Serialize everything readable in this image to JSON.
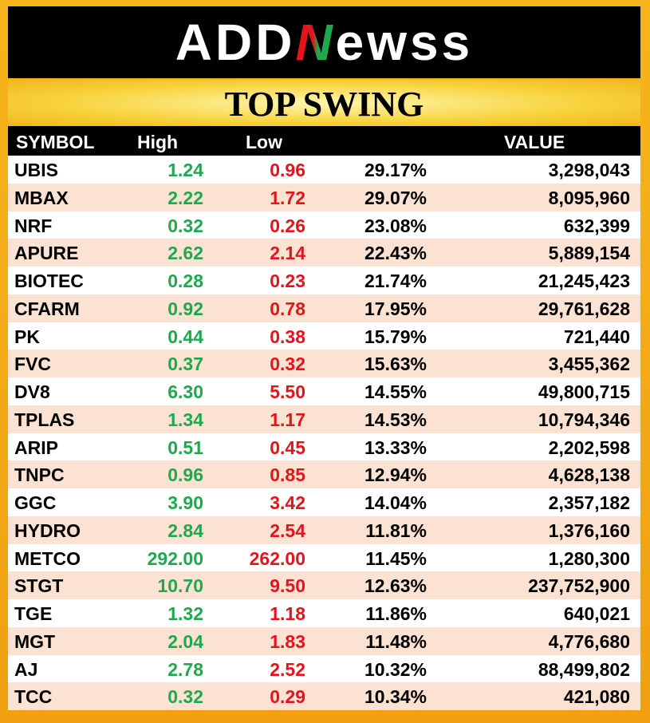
{
  "logo": {
    "left": "ADD",
    "mark": "N",
    "right": "ewss"
  },
  "title": "TOP SWING",
  "header": {
    "symbol": "SYMBOL",
    "high": "High",
    "low": "Low",
    "value": "VALUE"
  },
  "table": {
    "rows": [
      [
        "UBIS",
        "1.24",
        "0.96",
        "29.17%",
        "3,298,043"
      ],
      [
        "MBAX",
        "2.22",
        "1.72",
        "29.07%",
        "8,095,960"
      ],
      [
        "NRF",
        "0.32",
        "0.26",
        "23.08%",
        "632,399"
      ],
      [
        "APURE",
        "2.62",
        "2.14",
        "22.43%",
        "5,889,154"
      ],
      [
        "BIOTEC",
        "0.28",
        "0.23",
        "21.74%",
        "21,245,423"
      ],
      [
        "CFARM",
        "0.92",
        "0.78",
        "17.95%",
        "29,761,628"
      ],
      [
        "PK",
        "0.44",
        "0.38",
        "15.79%",
        "721,440"
      ],
      [
        "FVC",
        "0.37",
        "0.32",
        "15.63%",
        "3,455,362"
      ],
      [
        "DV8",
        "6.30",
        "5.50",
        "14.55%",
        "49,800,715"
      ],
      [
        "TPLAS",
        "1.34",
        "1.17",
        "14.53%",
        "10,794,346"
      ],
      [
        "ARIP",
        "0.51",
        "0.45",
        "13.33%",
        "2,202,598"
      ],
      [
        "TNPC",
        "0.96",
        "0.85",
        "12.94%",
        "4,628,138"
      ],
      [
        "GGC",
        "3.90",
        "3.42",
        "14.04%",
        "2,357,182"
      ],
      [
        "HYDRO",
        "2.84",
        "2.54",
        "11.81%",
        "1,376,160"
      ],
      [
        "METCO",
        "292.00",
        "262.00",
        "11.45%",
        "1,280,300"
      ],
      [
        "STGT",
        "10.70",
        "9.50",
        "12.63%",
        "237,752,900"
      ],
      [
        "TGE",
        "1.32",
        "1.18",
        "11.86%",
        "640,021"
      ],
      [
        "MGT",
        "2.04",
        "1.83",
        "11.48%",
        "4,776,680"
      ],
      [
        "AJ",
        "2.78",
        "2.52",
        "10.32%",
        "88,499,802"
      ],
      [
        "TCC",
        "0.32",
        "0.29",
        "10.34%",
        "421,080"
      ]
    ]
  }
}
